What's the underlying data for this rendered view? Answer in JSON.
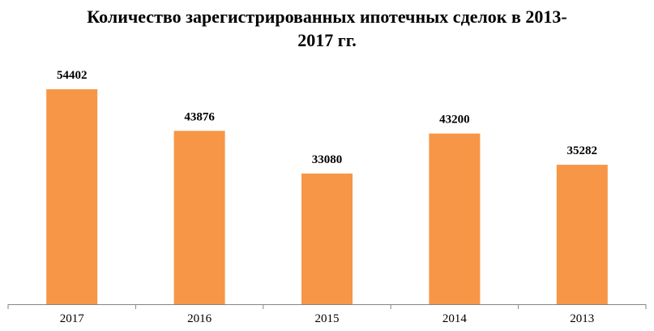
{
  "chart_data": {
    "type": "bar",
    "title_line1": "Количество зарегистрированных ипотечных сделок в 2013-",
    "title_line2": "2017 гг.",
    "categories": [
      "2017",
      "2016",
      "2015",
      "2014",
      "2013"
    ],
    "values": [
      54402,
      43876,
      33080,
      43200,
      35282
    ],
    "data_labels": [
      "54402",
      "43876",
      "33080",
      "43200",
      "35282"
    ],
    "xlabel": "",
    "ylabel": "",
    "ylim": [
      0,
      60000
    ],
    "grid": false,
    "legend": "none",
    "bar_color": "#F79646",
    "axis_color": "#868686"
  }
}
